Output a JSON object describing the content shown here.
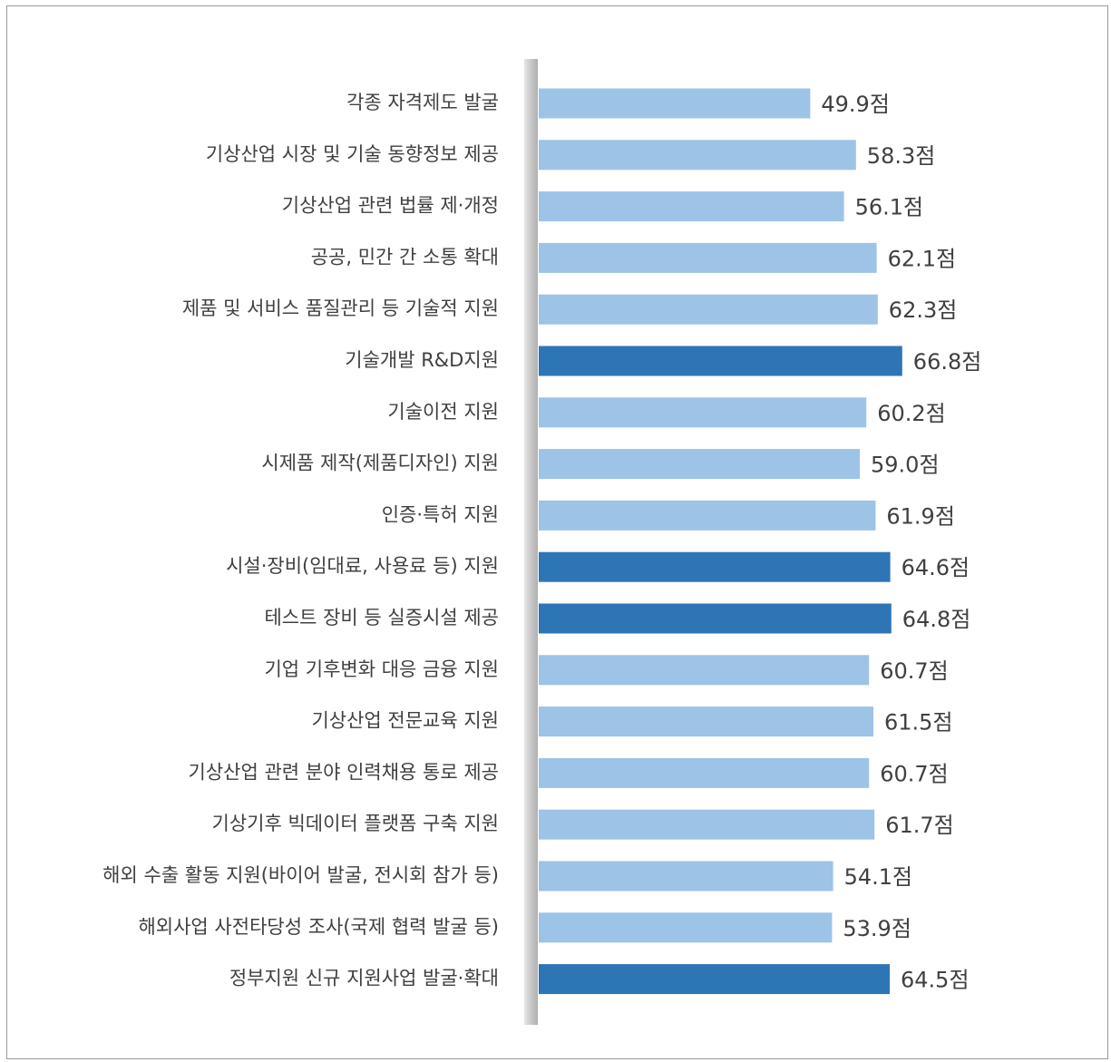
{
  "chart_data": {
    "type": "barh",
    "categories": [
      "각종 자격제도 발굴",
      "기상산업 시장 및 기술 동향정보 제공",
      "기상산업 관련 법률 제·개정",
      "공공, 민간 간 소통 확대",
      "제품 및 서비스 품질관리 등 기술적 지원",
      "기술개발 R&D지원",
      "기술이전 지원",
      "시제품 제작(제품디자인) 지원",
      "인증·특허 지원",
      "시설·장비(임대료, 사용료 등) 지원",
      "테스트 장비 등 실증시설 제공",
      "기업 기후변화 대응 금융 지원",
      "기상산업 전문교육 지원",
      "기상산업 관련 분야 인력채용 통로 제공",
      "기상기후 빅데이터 플랫폼 구축 지원",
      "해외 수출 활동 지원(바이어 발굴, 전시회 참가 등)",
      "해외사업 사전타당성 조사(국제 협력 발굴 등)",
      "정부지원 신규 지원사업 발굴·확대"
    ],
    "values": [
      49.9,
      58.3,
      56.1,
      62.1,
      62.3,
      66.8,
      60.2,
      59.0,
      61.9,
      64.6,
      64.8,
      60.7,
      61.5,
      60.7,
      61.7,
      54.1,
      53.9,
      64.5
    ],
    "value_labels": [
      "49.9점",
      "58.3점",
      "56.1점",
      "62.1점",
      "62.3점",
      "66.8점",
      "60.2점",
      "59.0점",
      "61.9점",
      "64.6점",
      "64.8점",
      "60.7점",
      "61.5점",
      "60.7점",
      "61.7점",
      "54.1점",
      "53.9점",
      "64.5점"
    ],
    "colors": [
      "#9dc3e6",
      "#9dc3e6",
      "#9dc3e6",
      "#9dc3e6",
      "#9dc3e6",
      "#2e75b6",
      "#9dc3e6",
      "#9dc3e6",
      "#9dc3e6",
      "#2e75b6",
      "#2e75b6",
      "#9dc3e6",
      "#9dc3e6",
      "#9dc3e6",
      "#9dc3e6",
      "#9dc3e6",
      "#9dc3e6",
      "#2e75b6"
    ],
    "xlim": [
      0,
      100
    ]
  }
}
